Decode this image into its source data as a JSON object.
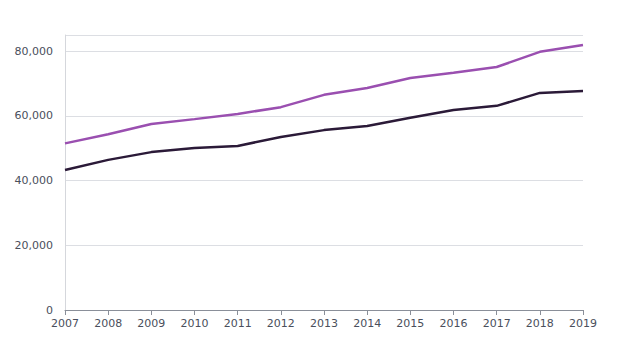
{
  "chart_data": {
    "type": "line",
    "categories": [
      "2007",
      "2008",
      "2009",
      "2010",
      "2011",
      "2012",
      "2013",
      "2014",
      "2015",
      "2016",
      "2017",
      "2018",
      "2019"
    ],
    "series": [
      {
        "color": "#9a4fb0",
        "values": [
          51500,
          54300,
          57500,
          59000,
          60600,
          62700,
          66500,
          68600,
          71700,
          73300,
          75100,
          79800,
          81900
        ]
      },
      {
        "color": "#2b1a38",
        "values": [
          43300,
          46400,
          48800,
          50100,
          50700,
          53500,
          55600,
          56900,
          59400,
          61800,
          63100,
          67100,
          67700
        ]
      }
    ],
    "ylim": [
      0,
      85000
    ],
    "yticks": [
      0,
      {
        "value": 20000,
        "label": "20,000"
      },
      {
        "value": 40000,
        "label": "40,000"
      },
      {
        "value": 60000,
        "label": "60,000"
      },
      {
        "value": 80000,
        "label": "80,000"
      }
    ],
    "grid": true,
    "marker": "none",
    "line_style": "solid"
  }
}
